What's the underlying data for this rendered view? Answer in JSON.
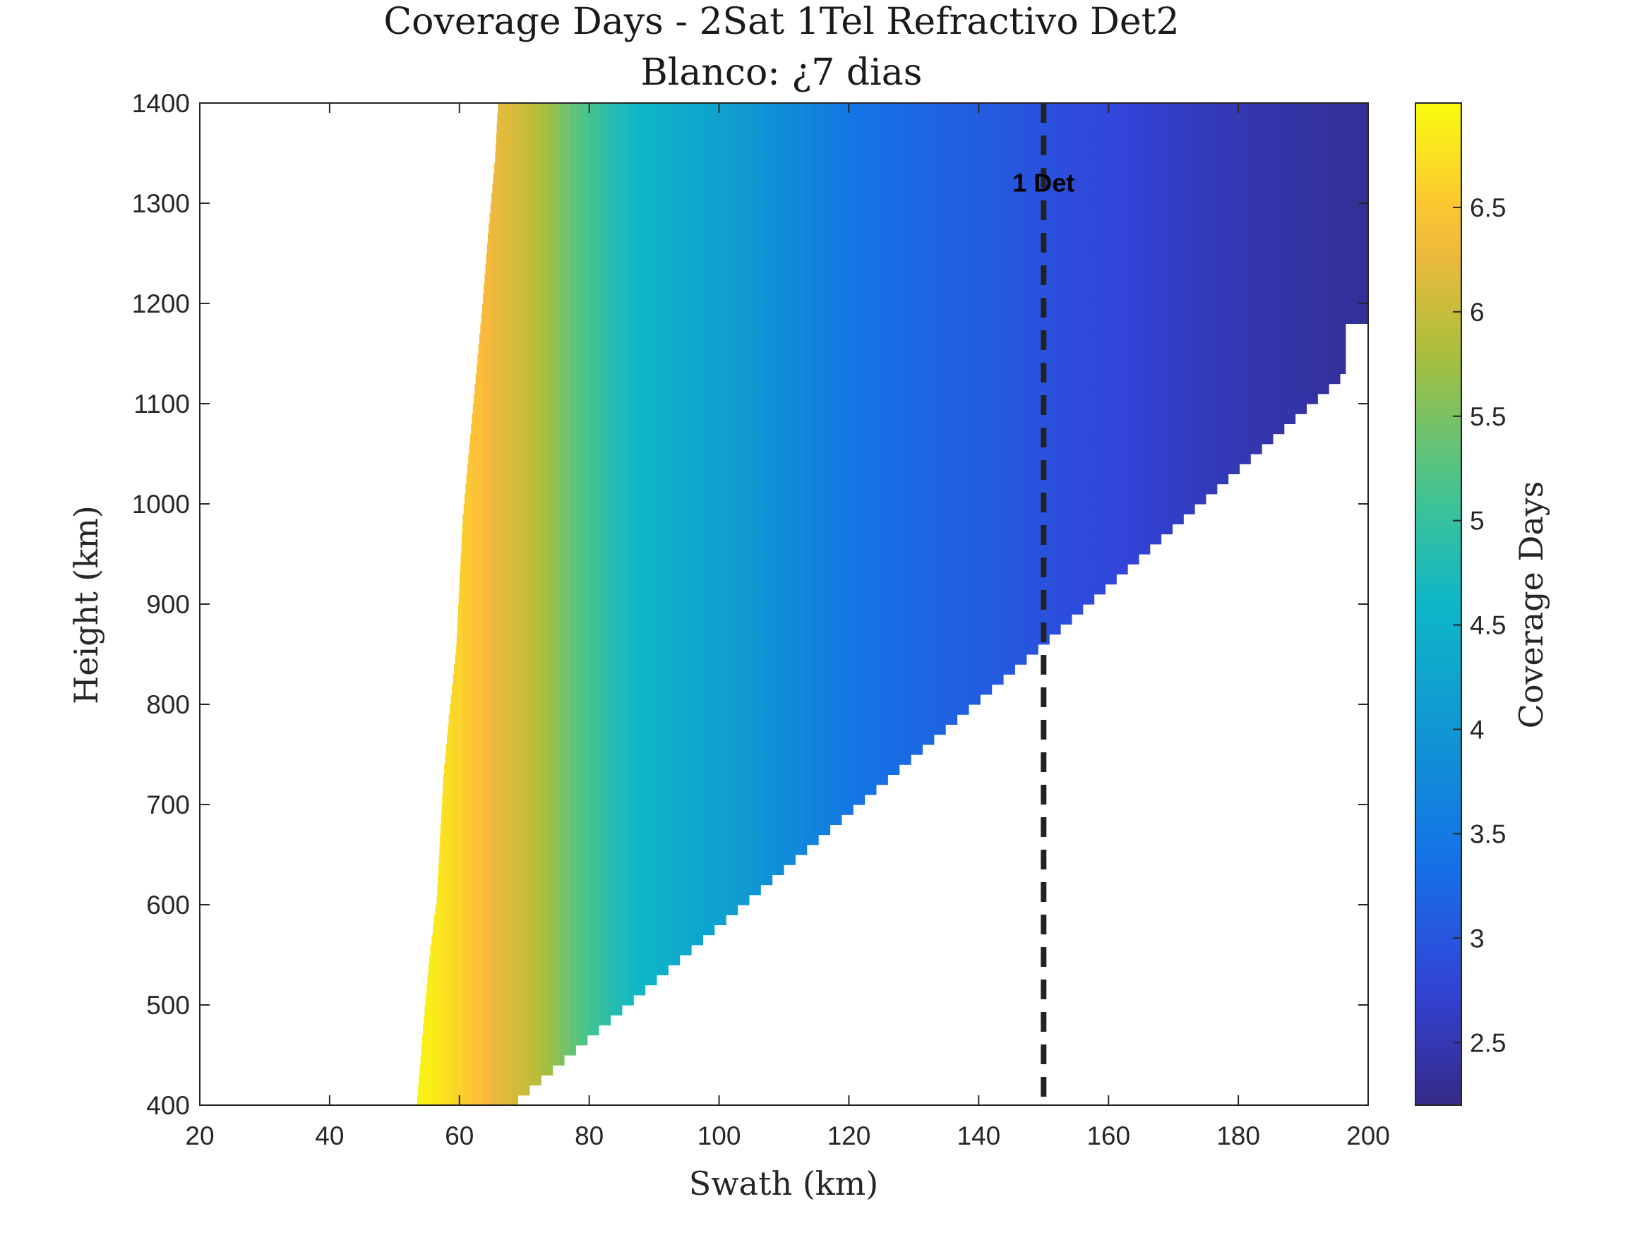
{
  "chart_data": {
    "type": "heatmap",
    "title": "Coverage Days - 2Sat 1Tel Refractivo Det2",
    "subtitle": "Blanco: ¿7 dias",
    "xlabel": "Swath (km)",
    "ylabel": "Height (km)",
    "colorbar_label": "Coverage Days",
    "xlim": [
      20,
      200
    ],
    "ylim": [
      400,
      1400
    ],
    "clim": [
      2.2,
      7.0
    ],
    "x_ticks": [
      20,
      40,
      60,
      80,
      100,
      120,
      140,
      160,
      180,
      200
    ],
    "y_ticks": [
      400,
      500,
      600,
      700,
      800,
      900,
      1000,
      1100,
      1200,
      1300,
      1400
    ],
    "colorbar_ticks": [
      2.5,
      3,
      3.5,
      4,
      4.5,
      5,
      5.5,
      6,
      6.5
    ],
    "x_range": [
      20,
      200
    ],
    "y_range": [
      400,
      1400
    ],
    "grid": false,
    "colormap": "parula",
    "boundary_left": {
      "y": [
        400,
        480,
        550,
        600,
        720,
        790,
        850,
        980,
        1050,
        1120,
        1190,
        1270,
        1340,
        1400
      ],
      "x": [
        53.5,
        54.5,
        55.5,
        56.5,
        57.5,
        58.5,
        59.5,
        60.5,
        61.5,
        62.5,
        63.5,
        64.5,
        65.5,
        66
      ]
    },
    "boundary_right": {
      "x": [
        69,
        150,
        196.5,
        196.5,
        200
      ],
      "y": [
        400,
        855,
        1125,
        1175,
        1175
      ]
    },
    "color_profile": {
      "x": [
        53.5,
        57,
        61,
        65,
        72,
        78,
        84,
        90,
        100,
        110,
        120,
        130,
        140,
        150,
        160,
        170,
        180,
        190,
        200
      ],
      "value": [
        6.95,
        6.8,
        6.55,
        6.3,
        5.9,
        5.3,
        4.8,
        4.5,
        4.2,
        3.8,
        3.45,
        3.25,
        3.1,
        2.95,
        2.8,
        2.65,
        2.5,
        2.4,
        2.3
      ]
    },
    "annotations": [
      {
        "text": "1 Det",
        "x": 150,
        "y": 1320
      }
    ],
    "reference_line": {
      "x": 150,
      "style": "dashed"
    }
  }
}
